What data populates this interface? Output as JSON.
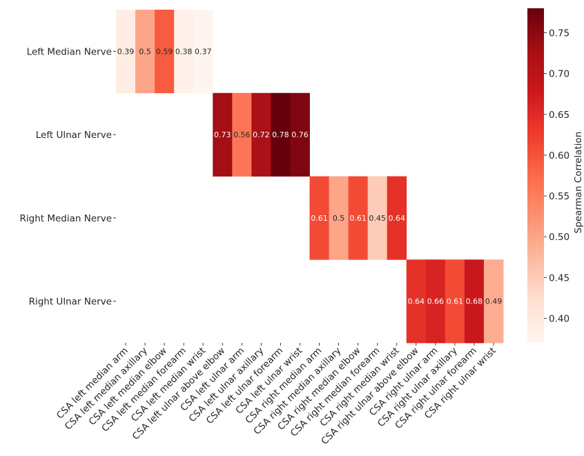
{
  "chart_data": {
    "type": "heatmap",
    "title": "",
    "xlabel": "",
    "ylabel": "",
    "y_categories": [
      "Left Median Nerve",
      "Left Ulnar Nerve",
      "Right Median Nerve",
      "Right Ulnar Nerve"
    ],
    "x_categories": [
      "CSA left median arm",
      "CSA left median axillary",
      "CSA left median elbow",
      "CSA left median forearm",
      "CSA left median wrist",
      "CSA left ulnar above elbow",
      "CSA left ulnar arm",
      "CSA left ulnar axillary",
      "CSA left ulnar forearm",
      "CSA left ulnar wrist",
      "CSA right median arm",
      "CSA right median axillary",
      "CSA right median elbow",
      "CSA right median forearm",
      "CSA right median wrist",
      "CSA right ulnar above elbow",
      "CSA right ulnar arm",
      "CSA right ulnar axillary",
      "CSA right ulnar forearm",
      "CSA right ulnar wrist"
    ],
    "cells": [
      {
        "row": 0,
        "col": 0,
        "value": 0.39,
        "label": "0.39"
      },
      {
        "row": 0,
        "col": 1,
        "value": 0.5,
        "label": "0.5"
      },
      {
        "row": 0,
        "col": 2,
        "value": 0.59,
        "label": "0.59"
      },
      {
        "row": 0,
        "col": 3,
        "value": 0.38,
        "label": "0.38"
      },
      {
        "row": 0,
        "col": 4,
        "value": 0.37,
        "label": "0.37"
      },
      {
        "row": 1,
        "col": 5,
        "value": 0.73,
        "label": "0.73"
      },
      {
        "row": 1,
        "col": 6,
        "value": 0.56,
        "label": "0.56"
      },
      {
        "row": 1,
        "col": 7,
        "value": 0.72,
        "label": "0.72"
      },
      {
        "row": 1,
        "col": 8,
        "value": 0.78,
        "label": "0.78"
      },
      {
        "row": 1,
        "col": 9,
        "value": 0.76,
        "label": "0.76"
      },
      {
        "row": 2,
        "col": 10,
        "value": 0.61,
        "label": "0.61"
      },
      {
        "row": 2,
        "col": 11,
        "value": 0.5,
        "label": "0.5"
      },
      {
        "row": 2,
        "col": 12,
        "value": 0.61,
        "label": "0.61"
      },
      {
        "row": 2,
        "col": 13,
        "value": 0.45,
        "label": "0.45"
      },
      {
        "row": 2,
        "col": 14,
        "value": 0.64,
        "label": "0.64"
      },
      {
        "row": 3,
        "col": 15,
        "value": 0.64,
        "label": "0.64"
      },
      {
        "row": 3,
        "col": 16,
        "value": 0.66,
        "label": "0.66"
      },
      {
        "row": 3,
        "col": 17,
        "value": 0.61,
        "label": "0.61"
      },
      {
        "row": 3,
        "col": 18,
        "value": 0.68,
        "label": "0.68"
      },
      {
        "row": 3,
        "col": 19,
        "value": 0.49,
        "label": "0.49"
      }
    ],
    "colorbar": {
      "label": "Spearman Correlation",
      "range": [
        0.37,
        0.78
      ],
      "ticks": [
        {
          "value": 0.4,
          "label": "0.40"
        },
        {
          "value": 0.45,
          "label": "0.45"
        },
        {
          "value": 0.5,
          "label": "0.50"
        },
        {
          "value": 0.55,
          "label": "0.55"
        },
        {
          "value": 0.6,
          "label": "0.60"
        },
        {
          "value": 0.65,
          "label": "0.65"
        },
        {
          "value": 0.7,
          "label": "0.70"
        },
        {
          "value": 0.75,
          "label": "0.75"
        }
      ],
      "colormap": "Reds",
      "colors": [
        "#fff5f0",
        "#fee0d2",
        "#fcbba1",
        "#fc9272",
        "#fb6a4a",
        "#ef3b2c",
        "#cb181d",
        "#a50f15",
        "#67000d"
      ]
    },
    "grid": false,
    "legend": "colorbar-right"
  }
}
